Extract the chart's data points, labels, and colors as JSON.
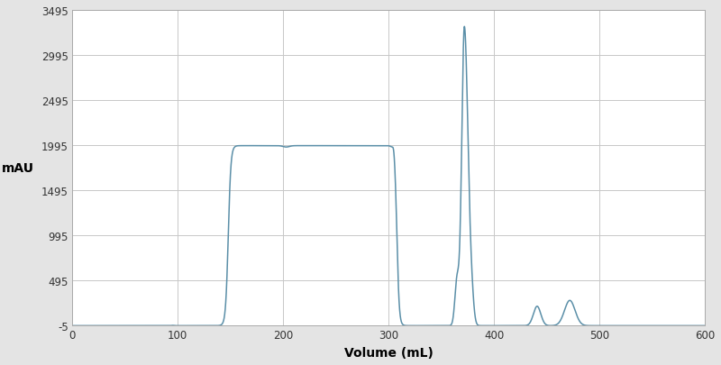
{
  "title": "",
  "xlabel": "Volume (mL)",
  "ylabel": "mAU",
  "xlim": [
    0,
    600
  ],
  "ylim": [
    -5,
    3495
  ],
  "yticks": [
    -5,
    495,
    995,
    1495,
    1995,
    2495,
    2995,
    3495
  ],
  "ytick_labels": [
    "-5",
    "495",
    "995",
    "1495",
    "1995",
    "2495",
    "2995",
    "3495"
  ],
  "xticks": [
    0,
    100,
    200,
    300,
    400,
    500,
    600
  ],
  "line_color": "#5b8fa8",
  "bg_color": "#e4e4e4",
  "plot_bg_color": "#ffffff",
  "grid_color": "#c8c8c8",
  "figsize": [
    8.0,
    4.06
  ],
  "dpi": 100
}
